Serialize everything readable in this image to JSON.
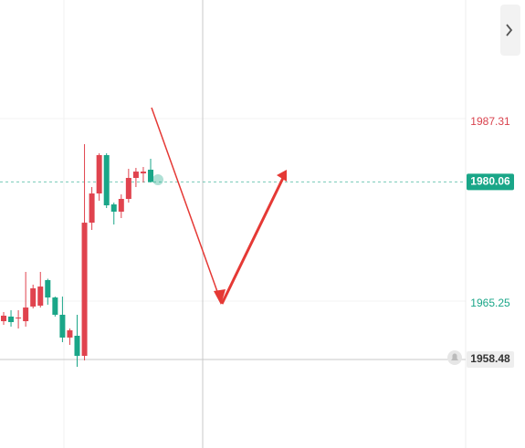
{
  "chart_data": {
    "type": "candlestick",
    "up_color": "#e0434e",
    "down_color": "#1aa688",
    "ylim": [
      1947.73,
      2002.17
    ],
    "candles": [
      {
        "open": 1963.14,
        "high": 1964.25,
        "low": 1962.7,
        "close": 1963.81
      },
      {
        "open": 1963.7,
        "high": 1964.47,
        "low": 1962.48,
        "close": 1963.03
      },
      {
        "open": 1963.47,
        "high": 1964.47,
        "low": 1962.25,
        "close": 1963.58
      },
      {
        "open": 1963.14,
        "high": 1969.13,
        "low": 1962.48,
        "close": 1964.8
      },
      {
        "open": 1964.92,
        "high": 1967.58,
        "low": 1964.69,
        "close": 1967.13
      },
      {
        "open": 1965.03,
        "high": 1969.13,
        "low": 1964.8,
        "close": 1967.35
      },
      {
        "open": 1968.13,
        "high": 1968.3,
        "low": 1965.14,
        "close": 1966.02
      },
      {
        "open": 1966.02,
        "high": 1966.13,
        "low": 1963.7,
        "close": 1963.92
      },
      {
        "open": 1963.92,
        "high": 1966.13,
        "low": 1960.59,
        "close": 1961.15
      },
      {
        "open": 1961.15,
        "high": 1962.25,
        "low": 1960.26,
        "close": 1962.03
      },
      {
        "open": 1961.37,
        "high": 1963.92,
        "low": 1957.6,
        "close": 1958.93
      },
      {
        "open": 1958.93,
        "high": 1984.65,
        "low": 1958.37,
        "close": 1975.11
      },
      {
        "open": 1975.11,
        "high": 1979.44,
        "low": 1974.23,
        "close": 1978.66
      },
      {
        "open": 1978.66,
        "high": 1983.54,
        "low": 1977.78,
        "close": 1983.32
      },
      {
        "open": 1983.32,
        "high": 1983.54,
        "low": 1976.89,
        "close": 1977.22
      },
      {
        "open": 1977.33,
        "high": 1977.55,
        "low": 1974.89,
        "close": 1976.45
      },
      {
        "open": 1976.45,
        "high": 1978.55,
        "low": 1975.67,
        "close": 1978.0
      },
      {
        "open": 1978.0,
        "high": 1981.66,
        "low": 1977.55,
        "close": 1980.55
      },
      {
        "open": 1980.55,
        "high": 1981.77,
        "low": 1979.44,
        "close": 1981.32
      },
      {
        "open": 1981.1,
        "high": 1981.88,
        "low": 1979.99,
        "close": 1981.32
      },
      {
        "open": 1981.55,
        "high": 1982.88,
        "low": 1979.99,
        "close": 1980.06
      }
    ],
    "price_lines": [
      {
        "value": 1987.31,
        "color": "#d9434e"
      },
      {
        "value": 1980.06,
        "color": "#1aa688",
        "boxed": true,
        "line": "dashed"
      },
      {
        "value": 1965.25,
        "color": "#1aa688"
      },
      {
        "value": 1958.48,
        "color": "#333333",
        "boxed": true,
        "line": "solid"
      }
    ]
  }
}
